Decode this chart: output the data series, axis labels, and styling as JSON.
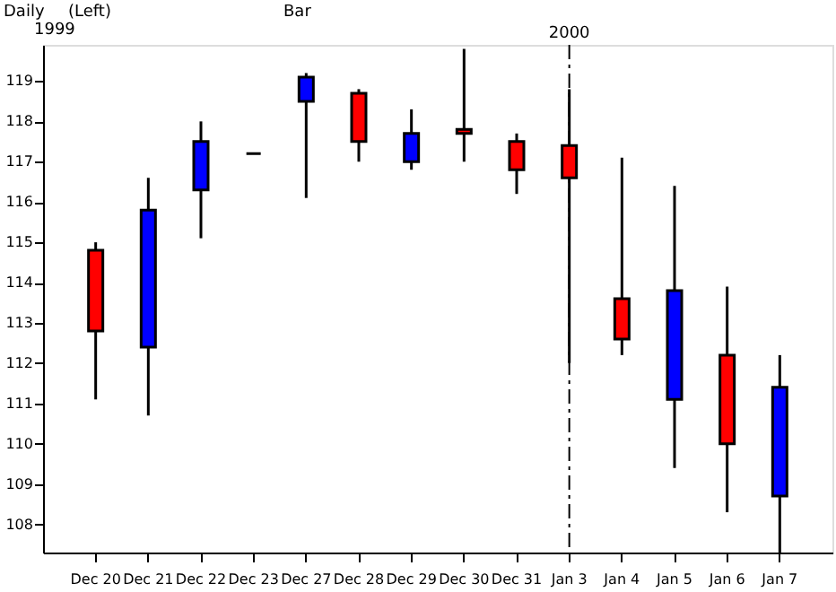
{
  "chart_data": {
    "type": "candlestick",
    "annotations": [
      "Daily",
      "(Left)",
      "Bar",
      "1999"
    ],
    "categories": [
      "Dec 20",
      "Dec 21",
      "Dec 22",
      "Dec 23",
      "Dec 27",
      "Dec 28",
      "Dec 29",
      "Dec 30",
      "Dec 31",
      "Jan 3",
      "Jan 4",
      "Jan 5",
      "Jan 6",
      "Jan 7"
    ],
    "ohlc": [
      [
        114.8,
        115.0,
        111.1,
        112.8
      ],
      [
        112.4,
        116.6,
        110.7,
        115.8
      ],
      [
        116.3,
        118.0,
        115.1,
        117.5
      ],
      [
        117.2,
        117.2,
        117.2,
        117.2
      ],
      [
        118.5,
        119.2,
        116.1,
        119.1
      ],
      [
        118.7,
        118.8,
        117.0,
        117.5
      ],
      [
        117.0,
        118.3,
        116.8,
        117.7
      ],
      [
        117.8,
        119.8,
        117.0,
        117.7
      ],
      [
        117.5,
        117.7,
        116.2,
        116.8
      ],
      [
        117.4,
        118.8,
        112.0,
        116.6
      ],
      [
        113.6,
        117.1,
        112.2,
        112.6
      ],
      [
        111.1,
        116.4,
        109.4,
        113.8
      ],
      [
        112.2,
        113.9,
        108.3,
        110.0
      ],
      [
        108.7,
        112.2,
        107.3,
        111.4
      ]
    ],
    "colors": [
      "#ff0000",
      "#0000ff",
      "#0000ff",
      "#000000",
      "#0000ff",
      "#ff0000",
      "#0000ff",
      "#ff0000",
      "#ff0000",
      "#ff0000",
      "#ff0000",
      "#0000ff",
      "#ff0000",
      "#0000ff"
    ],
    "ylim": [
      107.3,
      119.9
    ],
    "yticks": [
      108,
      109,
      110,
      111,
      112,
      113,
      114,
      115,
      116,
      117,
      118,
      119
    ],
    "ref_lines": [
      {
        "axis": "x",
        "value": "Jan 3",
        "label": "2000",
        "color": "#000000",
        "line_style": "dashed"
      }
    ],
    "grid": false
  }
}
